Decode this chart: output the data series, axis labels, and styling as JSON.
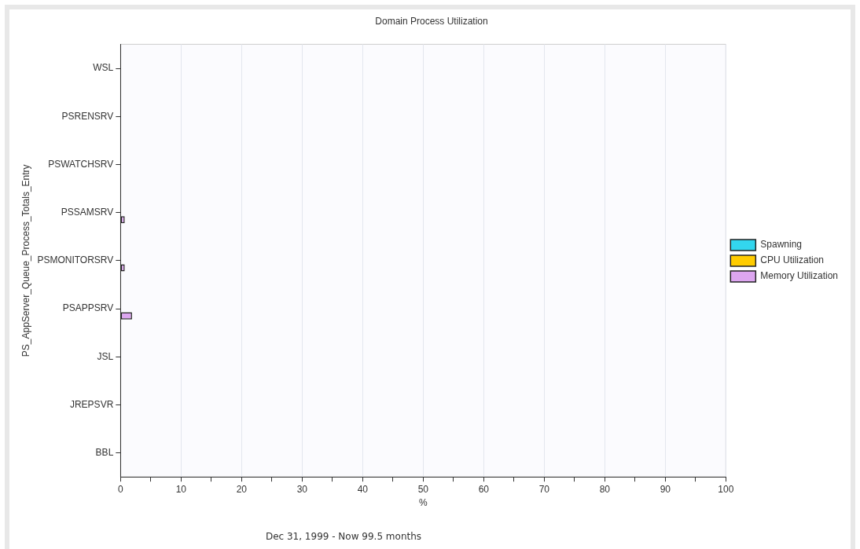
{
  "chart_data": {
    "type": "bar",
    "orientation": "horizontal",
    "title": "Domain Process Utilization",
    "xlabel": "%",
    "ylabel": "PS_AppServer_Queue_Process_Totals_Entry",
    "categories": [
      "WSL",
      "PSRENSRV",
      "PSWATCHSRV",
      "PSSAMSRV",
      "PSMONITORSRV",
      "PSAPPSRV",
      "JSL",
      "JREPSVR",
      "BBL"
    ],
    "series": [
      {
        "name": "Spawning",
        "color": "#33d6ee",
        "values": [
          0,
          0,
          0,
          0,
          0,
          0,
          0,
          0,
          0
        ]
      },
      {
        "name": "CPU Utilization",
        "color": "#ffcc00",
        "values": [
          0,
          0,
          0,
          0,
          0,
          0,
          0,
          0,
          0
        ]
      },
      {
        "name": "Memory Utilization",
        "color": "#dda6f0",
        "values": [
          0,
          0,
          0,
          0.7,
          0.7,
          1.9,
          0,
          0,
          0
        ]
      }
    ],
    "xlim": [
      0,
      100
    ],
    "xticks": [
      0,
      {
        "value": 5,
        "label": null
      },
      10,
      {
        "value": 15,
        "label": null
      },
      20,
      {
        "value": 25,
        "label": null
      },
      30,
      {
        "value": 35,
        "label": null
      },
      40,
      {
        "value": 45,
        "label": null
      },
      50,
      {
        "value": 55,
        "label": null
      },
      60,
      {
        "value": 65,
        "label": null
      },
      70,
      {
        "value": 75,
        "label": null
      },
      80,
      {
        "value": 85,
        "label": null
      },
      90,
      {
        "value": 95,
        "label": null
      },
      100
    ],
    "grid": "x",
    "legend": "right",
    "annotations": [
      "Dec 31, 1999 - Now  99.5 months"
    ]
  }
}
